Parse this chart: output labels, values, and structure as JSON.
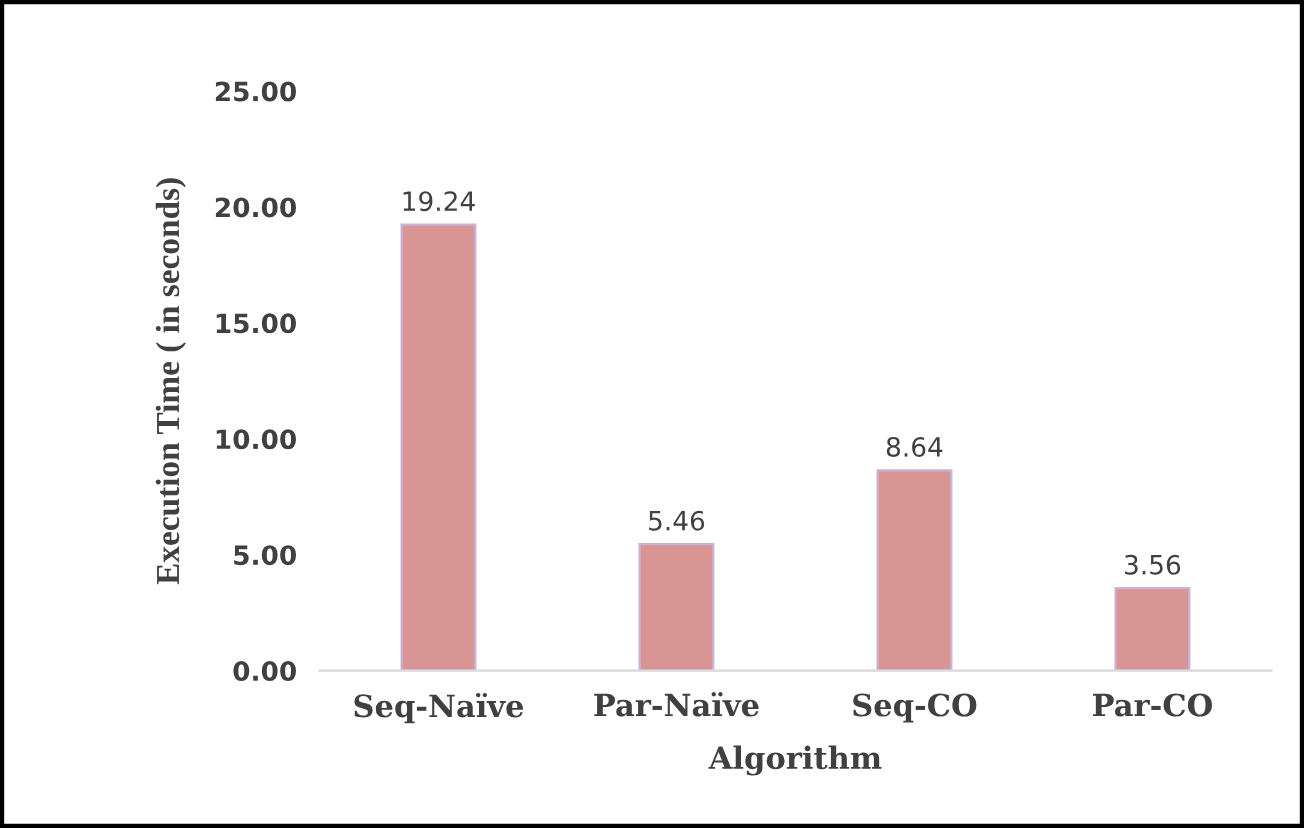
{
  "chart_data": {
    "type": "bar",
    "xlabel": "Algorithm",
    "ylabel": "Execution Time ( in seconds)",
    "categories": [
      "Seq-Naïve",
      "Par-Naïve",
      "Seq-CO",
      "Par-CO"
    ],
    "values": [
      19.24,
      5.46,
      8.64,
      3.56
    ],
    "color": "#d99594",
    "ylim": [
      0,
      25
    ],
    "yticks": [
      {
        "value": 0,
        "label": "0.00"
      },
      {
        "value": 5,
        "label": "5.00"
      },
      {
        "value": 10,
        "label": "10.00"
      },
      {
        "value": 15,
        "label": "15.00"
      },
      {
        "value": 20,
        "label": "20.00"
      },
      {
        "value": 25,
        "label": "25.00"
      }
    ],
    "data_labels": true,
    "grid": false,
    "legend": false
  }
}
